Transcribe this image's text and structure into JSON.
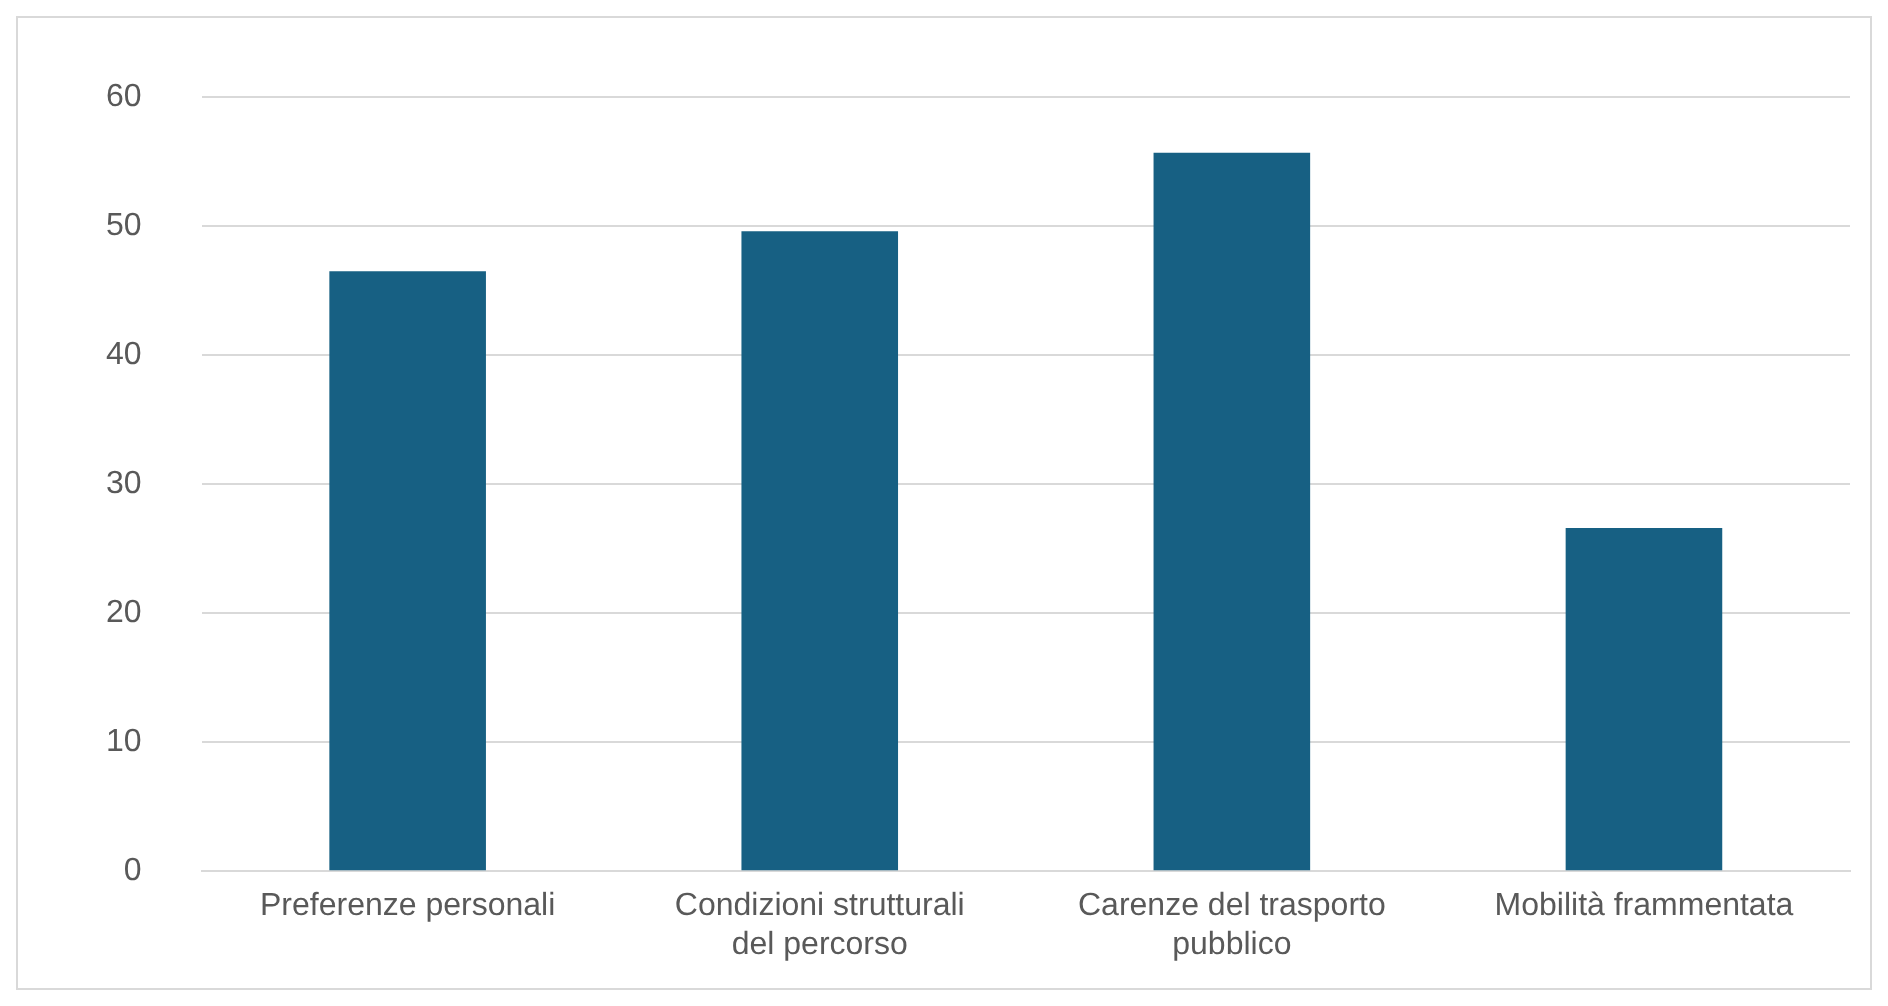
{
  "chart_data": {
    "type": "bar",
    "categories": [
      "Preferenze personali",
      "Condizioni strutturali del percorso",
      "Carenze del trasporto pubblico",
      "Mobilità frammentata"
    ],
    "values": [
      46.5,
      49.6,
      55.7,
      26.6
    ],
    "color": "#176083",
    "ylim": [
      0,
      60
    ],
    "yticks": [
      0,
      10,
      20,
      30,
      40,
      50,
      60
    ],
    "grid": "y",
    "legend": false
  }
}
